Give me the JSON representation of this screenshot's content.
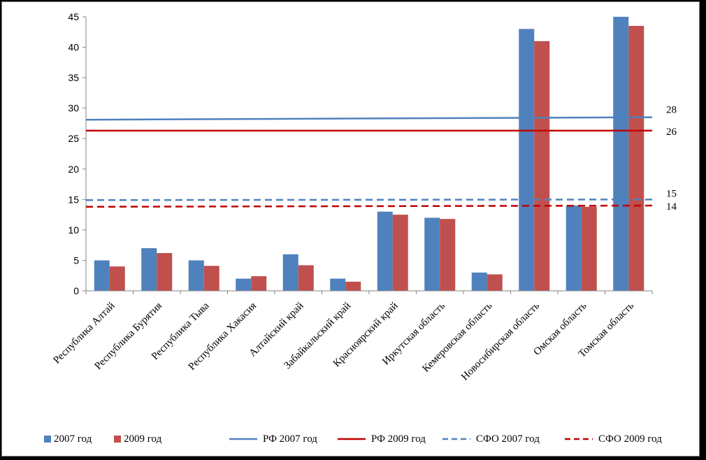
{
  "chart_data": {
    "type": "bar",
    "categories": [
      "Республика Алтай",
      "Республика Бурятия",
      "Республика Тыва",
      "Республика Хакасия",
      "Алтайский край",
      "Забайкальский край",
      "Красноярский край",
      "Иркутская область",
      "Кемеровская область",
      "Новосибирская область",
      "Омская область",
      "Томская область"
    ],
    "series": [
      {
        "name": "2007 год",
        "color": "#4f81bd",
        "values": [
          5,
          7,
          5,
          2,
          6,
          2,
          13,
          12,
          3,
          43,
          14,
          45
        ]
      },
      {
        "name": "2009 год",
        "color": "#c0504d",
        "values": [
          4,
          6.2,
          4.1,
          2.4,
          4.2,
          1.5,
          12.5,
          11.8,
          2.7,
          41,
          13.8,
          43.5
        ]
      }
    ],
    "reference_lines": [
      {
        "name": "РФ 2007 год",
        "start": 28.1,
        "end": 28.5,
        "label": "28",
        "color": "#4f81bd",
        "style": "solid"
      },
      {
        "name": "РФ 2009 год",
        "start": 26.3,
        "end": 26.3,
        "label": "26",
        "color": "#c00000",
        "style": "solid"
      },
      {
        "name": "СФО 2007 год",
        "start": 14.9,
        "end": 15,
        "label": "15",
        "color": "#4f81bd",
        "style": "dashed"
      },
      {
        "name": "СФО 2009 год",
        "start": 13.8,
        "end": 14,
        "label": "14",
        "color": "#c00000",
        "style": "dashed"
      }
    ],
    "ylim": [
      0,
      45
    ],
    "yticks": [
      0,
      5,
      10,
      15,
      20,
      25,
      30,
      35,
      40,
      45
    ],
    "grid": false,
    "legend_position": "bottom"
  }
}
